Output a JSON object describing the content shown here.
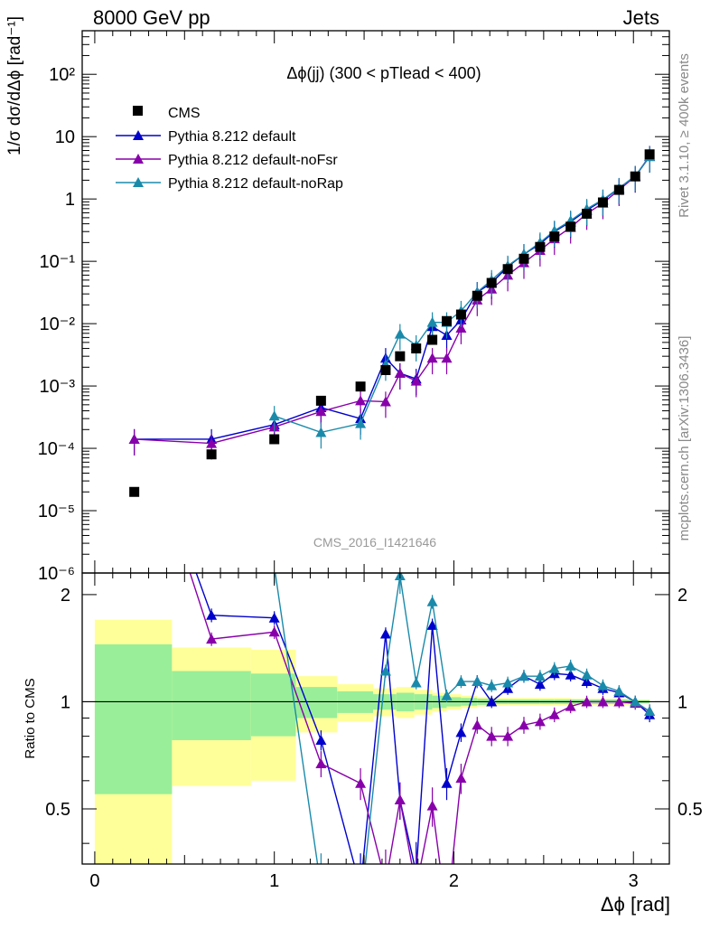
{
  "header": {
    "left": "8000 GeV pp",
    "right": "Jets"
  },
  "side_text": {
    "rivet": "Rivet 3.1.10, ≥ 400k events",
    "mcplots": "mcplots.cern.ch [arXiv:1306.3436]"
  },
  "chart_data": {
    "type": "line",
    "title": "Δϕ(jj) (300 < pTlead <  400)",
    "watermark": "CMS_2016_I1421646",
    "xlabel": "Δϕ [rad]",
    "ylabel": "1/σ dσ/dΔϕ [rad⁻¹]",
    "ratio_ylabel": "Ratio to CMS",
    "xlim": [
      -0.07,
      3.2
    ],
    "ylim_log": [
      1e-06,
      500
    ],
    "ratio_ylim": [
      0.35,
      2.3
    ],
    "x_ticks": [
      0,
      1,
      2,
      3
    ],
    "y_tick_labels": [
      "10⁻⁶",
      "10⁻⁵",
      "10⁻⁴",
      "10⁻³",
      "10⁻²",
      "10⁻¹",
      "1",
      "10",
      "10²"
    ],
    "ratio_tick_labels": [
      "0.5",
      "1",
      "2"
    ],
    "legend_position": "top-left",
    "legend": [
      "CMS",
      "Pythia 8.212 default",
      "Pythia 8.212 default-noFsr",
      "Pythia 8.212 default-noRap"
    ],
    "cms": {
      "x": [
        0.22,
        0.65,
        1.0,
        1.26,
        1.48,
        1.62,
        1.7,
        1.79,
        1.88,
        1.96,
        2.04,
        2.13,
        2.21,
        2.3,
        2.39,
        2.48,
        2.56,
        2.65,
        2.74,
        2.83,
        2.92,
        3.01,
        3.09
      ],
      "y": [
        2e-05,
        8e-05,
        0.00014,
        0.00058,
        0.00098,
        0.0018,
        0.003,
        0.004,
        0.0055,
        0.011,
        0.014,
        0.028,
        0.045,
        0.075,
        0.11,
        0.17,
        0.25,
        0.36,
        0.58,
        0.88,
        1.4,
        2.3,
        5.2
      ]
    },
    "series": [
      {
        "name": "Pythia 8.212 default",
        "color": "#0000cc",
        "x": [
          0.22,
          0.65,
          1.0,
          1.26,
          1.48,
          1.62,
          1.7,
          1.79,
          1.88,
          1.96,
          2.04,
          2.13,
          2.21,
          2.3,
          2.39,
          2.48,
          2.56,
          2.65,
          2.74,
          2.83,
          2.92,
          3.01,
          3.09
        ],
        "y": [
          0.00014,
          0.00014,
          0.00024,
          0.00045,
          0.0003,
          0.0028,
          0.0016,
          0.0013,
          0.009,
          0.0065,
          0.0115,
          0.032,
          0.045,
          0.082,
          0.13,
          0.19,
          0.3,
          0.43,
          0.66,
          0.96,
          1.48,
          2.3,
          4.8
        ],
        "ratio": [
          7.0,
          1.75,
          1.72,
          0.78,
          0.3,
          1.55,
          0.53,
          0.33,
          1.64,
          0.59,
          0.82,
          1.14,
          1.0,
          1.09,
          1.18,
          1.12,
          1.2,
          1.19,
          1.14,
          1.09,
          1.06,
          1.0,
          0.92
        ]
      },
      {
        "name": "Pythia 8.212 default-noFsr",
        "color": "#8800aa",
        "x": [
          0.22,
          0.65,
          1.0,
          1.26,
          1.48,
          1.62,
          1.7,
          1.79,
          1.88,
          1.96,
          2.04,
          2.13,
          2.21,
          2.3,
          2.39,
          2.48,
          2.56,
          2.65,
          2.74,
          2.83,
          2.92,
          3.01,
          3.09
        ],
        "y": [
          0.00014,
          0.00012,
          0.00022,
          0.00039,
          0.00058,
          0.00056,
          0.0016,
          0.0012,
          0.0028,
          0.0028,
          0.0085,
          0.024,
          0.036,
          0.06,
          0.095,
          0.15,
          0.23,
          0.35,
          0.58,
          0.86,
          1.4,
          2.3,
          4.9
        ],
        "ratio": [
          7.0,
          1.5,
          1.57,
          0.67,
          0.59,
          0.31,
          0.53,
          0.3,
          0.51,
          0.25,
          0.61,
          0.86,
          0.8,
          0.8,
          0.86,
          0.88,
          0.92,
          0.97,
          1.0,
          1.0,
          1.0,
          0.99,
          0.94
        ]
      },
      {
        "name": "Pythia 8.212 default-noRap",
        "color": "#1a8aaa",
        "x": [
          0.22,
          0.65,
          1.0,
          1.26,
          1.48,
          1.62,
          1.7,
          1.79,
          1.88,
          1.96,
          2.04,
          2.13,
          2.21,
          2.3,
          2.39,
          2.48,
          2.56,
          2.65,
          2.74,
          2.83,
          2.92,
          3.01,
          3.09
        ],
        "y": [
          null,
          null,
          0.00033,
          0.00018,
          0.00025,
          0.0022,
          0.0068,
          0.0045,
          0.0105,
          0.0105,
          0.016,
          0.032,
          0.05,
          0.085,
          0.13,
          0.2,
          0.31,
          0.45,
          0.69,
          0.98,
          1.5,
          2.35,
          4.8
        ],
        "ratio": [
          null,
          null,
          2.4,
          0.3,
          0.26,
          1.22,
          2.26,
          1.13,
          1.91,
          1.04,
          1.14,
          1.14,
          1.11,
          1.13,
          1.18,
          1.18,
          1.24,
          1.26,
          1.19,
          1.11,
          1.07,
          1.0,
          0.94
        ]
      }
    ],
    "ratio_bands": {
      "edges": [
        0.0,
        0.43,
        0.87,
        1.12,
        1.35,
        1.55,
        1.68,
        1.78,
        1.88,
        1.96,
        2.04,
        2.13,
        2.21,
        2.3,
        2.39,
        2.48,
        2.56,
        2.65,
        2.74,
        2.83,
        2.92,
        3.01,
        3.09
      ],
      "stat_half": [
        0.45,
        0.22,
        0.2,
        0.1,
        0.07,
        0.05,
        0.06,
        0.05,
        0.04,
        0.03,
        0.025,
        0.02,
        0.015,
        0.015,
        0.015,
        0.015,
        0.015,
        0.015,
        0.015,
        0.015,
        0.015,
        0.01
      ],
      "total_half": [
        0.7,
        0.42,
        0.4,
        0.18,
        0.12,
        0.09,
        0.1,
        0.08,
        0.06,
        0.05,
        0.04,
        0.03,
        0.025,
        0.025,
        0.025,
        0.025,
        0.025,
        0.02,
        0.02,
        0.02,
        0.02,
        0.015
      ]
    }
  }
}
